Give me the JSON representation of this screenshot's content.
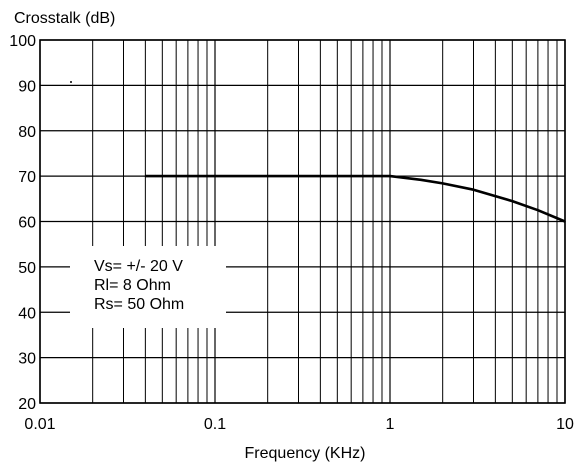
{
  "chart_data": {
    "type": "line",
    "title": "",
    "ylabel": "Crosstalk (dB)",
    "xlabel": "Frequency (KHz)",
    "xscale": "log",
    "xlim": [
      0.01,
      10
    ],
    "ylim": [
      20,
      100
    ],
    "grid": true,
    "x_ticks": [
      {
        "value": 0.01,
        "label": "0.01"
      },
      {
        "value": 0.1,
        "label": "0.1"
      },
      {
        "value": 1,
        "label": "1"
      },
      {
        "value": 10,
        "label": "10"
      }
    ],
    "y_ticks": [
      {
        "value": 20,
        "label": "20"
      },
      {
        "value": 30,
        "label": "30"
      },
      {
        "value": 40,
        "label": "40"
      },
      {
        "value": 50,
        "label": "50"
      },
      {
        "value": 60,
        "label": "60"
      },
      {
        "value": 70,
        "label": "70"
      },
      {
        "value": 80,
        "label": "80"
      },
      {
        "value": 90,
        "label": "90"
      },
      {
        "value": 100,
        "label": "100"
      }
    ],
    "series": [
      {
        "color": "#000000",
        "points": [
          {
            "x": 0.04,
            "y": 70
          },
          {
            "x": 0.1,
            "y": 70
          },
          {
            "x": 0.5,
            "y": 70
          },
          {
            "x": 1,
            "y": 70
          },
          {
            "x": 1.5,
            "y": 69.2
          },
          {
            "x": 2,
            "y": 68.4
          },
          {
            "x": 3,
            "y": 67
          },
          {
            "x": 5,
            "y": 64.5
          },
          {
            "x": 7,
            "y": 62.5
          },
          {
            "x": 10,
            "y": 60
          }
        ]
      }
    ],
    "annotation_lines": [
      "Vs= +/- 20 V",
      "Rl= 8 Ohm",
      "Rs= 50 Ohm"
    ],
    "annotation_position": "lower-left"
  }
}
